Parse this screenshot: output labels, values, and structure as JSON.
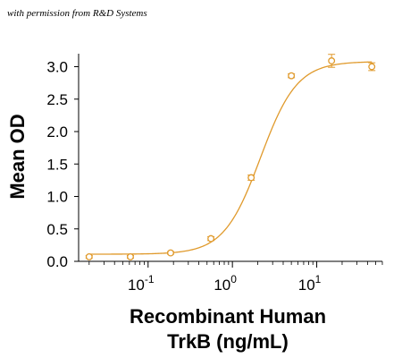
{
  "credit": "with permission from R&D Systems",
  "colors": {
    "series": "#E09A2C",
    "axis": "#000000"
  },
  "chart_data": {
    "type": "scatter",
    "title": "",
    "ylabel": "Mean OD",
    "xlabel_lines": [
      "Recombinant Human",
      "TrkB (ng/mL)"
    ],
    "x_scale": "log",
    "xlim": [
      0.015,
      60
    ],
    "ylim": [
      0,
      3.2
    ],
    "y_ticks": [
      0.0,
      0.5,
      1.0,
      1.5,
      2.0,
      2.5,
      3.0
    ],
    "y_tick_labels": [
      "0.0",
      "0.5",
      "1.0",
      "1.5",
      "2.0",
      "2.5",
      "3.0"
    ],
    "x_major_ticks": [
      0.1,
      1,
      10
    ],
    "x_tick_labels": [
      {
        "base": "10",
        "exp": "-1"
      },
      {
        "base": "10",
        "exp": "0"
      },
      {
        "base": "10",
        "exp": "1"
      }
    ],
    "grid": false,
    "legend": "none",
    "points": [
      {
        "x": 0.02,
        "y": 0.07,
        "err": 0.02
      },
      {
        "x": 0.0617,
        "y": 0.07,
        "err": 0.02
      },
      {
        "x": 0.185,
        "y": 0.13,
        "err": 0.02
      },
      {
        "x": 0.556,
        "y": 0.35,
        "err": 0.03
      },
      {
        "x": 1.67,
        "y": 1.29,
        "err": 0.04
      },
      {
        "x": 5.0,
        "y": 2.86,
        "err": 0.03
      },
      {
        "x": 15.0,
        "y": 3.09,
        "err": 0.1
      },
      {
        "x": 45.0,
        "y": 3.0,
        "err": 0.06
      }
    ],
    "fit": {
      "bottom": 0.11,
      "top": 3.08,
      "ec50": 2.15,
      "hill": 2.0
    }
  }
}
